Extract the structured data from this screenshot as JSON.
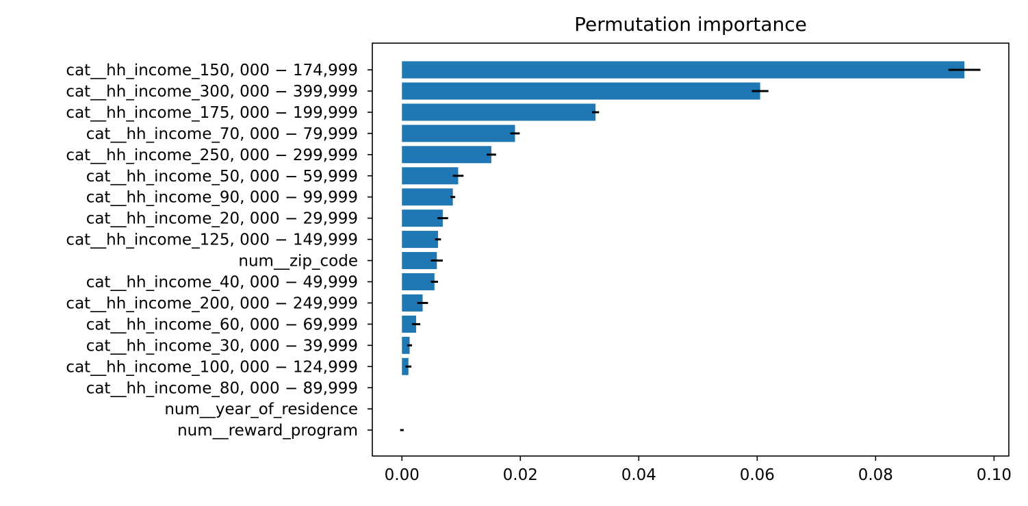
{
  "chart_data": {
    "type": "bar",
    "orientation": "horizontal",
    "title": "Permutation importance",
    "xlabel": "",
    "ylabel": "",
    "xlim": [
      -0.005,
      0.1025
    ],
    "xticks": [
      0.0,
      0.02,
      0.04,
      0.06,
      0.08,
      0.1
    ],
    "xtick_labels": [
      "0.00",
      "0.02",
      "0.04",
      "0.06",
      "0.08",
      "0.10"
    ],
    "grid": false,
    "legend": "none",
    "bar_color": "#1f77b4",
    "errorbar_color": "#000000",
    "categories": [
      "cat__hh_income_150, 000 − 174,999",
      "cat__hh_income_300, 000 − 399,999",
      "cat__hh_income_175, 000 − 199,999",
      "cat__hh_income_70, 000 − 79,999",
      "cat__hh_income_250, 000 − 299,999",
      "cat__hh_income_50, 000 − 59,999",
      "cat__hh_income_90, 000 − 99,999",
      "cat__hh_income_20, 000 − 29,999",
      "cat__hh_income_125, 000 − 149,999",
      "num__zip_code",
      "cat__hh_income_40, 000 − 49,999",
      "cat__hh_income_200, 000 − 249,999",
      "cat__hh_income_60, 000 − 69,999",
      "cat__hh_income_30, 000 − 39,999",
      "cat__hh_income_100, 000 − 124,999",
      "cat__hh_income_80, 000 − 89,999",
      "num__year_of_residence",
      "num__reward_program"
    ],
    "values": [
      0.095,
      0.0605,
      0.0327,
      0.0191,
      0.0151,
      0.0095,
      0.0086,
      0.0069,
      0.0061,
      0.0059,
      0.0055,
      0.0035,
      0.0024,
      0.0013,
      0.0011,
      0.0,
      0.0,
      0.0
    ],
    "errors": [
      0.0027,
      0.0014,
      0.0006,
      0.0008,
      0.0008,
      0.0009,
      0.0004,
      0.0009,
      0.0005,
      0.001,
      0.0006,
      0.0009,
      0.0007,
      0.0004,
      0.0005,
      0.0,
      0.0,
      0.0003
    ]
  }
}
